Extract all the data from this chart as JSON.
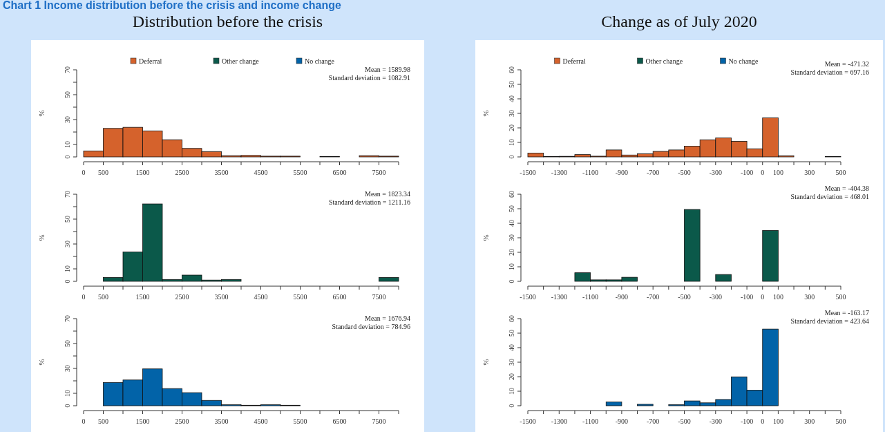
{
  "chart_data": [
    {
      "type": "histogram",
      "title": "Chart 1 Income distribution before the crisis and income change",
      "subtitle": "Distribution before the crisis",
      "ylabel": "%",
      "legend": "top",
      "bins": [
        0,
        500,
        1000,
        1500,
        2000,
        2500,
        3000,
        3500,
        4000,
        4500,
        5000,
        5500,
        6000,
        6500,
        7000,
        7500,
        8000
      ],
      "series": [
        {
          "name": "Deferral",
          "color": "#d5622c",
          "values": [
            4.8,
            22.9,
            23.8,
            20.9,
            13.8,
            6.8,
            4.3,
            1,
            1.2,
            0.6,
            0.6,
            0,
            0.4,
            0,
            1,
            0.6
          ]
        }
      ],
      "xlim": [
        0,
        8000
      ],
      "xticks": [
        0,
        500,
        {
          "value": 1000,
          "label": null
        },
        1500,
        {
          "value": 2000,
          "label": null
        },
        2500,
        {
          "value": 3000,
          "label": null
        },
        3500,
        {
          "value": 4000,
          "label": null
        },
        4500,
        {
          "value": 5000,
          "label": null
        },
        5500,
        {
          "value": 6000,
          "label": null
        },
        6500,
        {
          "value": 7000,
          "label": null
        },
        7500,
        {
          "value": 8000,
          "label": null
        }
      ],
      "ylim": [
        0,
        70
      ],
      "yticks": [
        0,
        10,
        {
          "value": 20,
          "label": null
        },
        30,
        {
          "value": 40,
          "label": null
        },
        50,
        {
          "value": 60,
          "label": null
        },
        70
      ],
      "annotations": [
        "Mean = 1589.98",
        "Standard deviation = 1082.91"
      ]
    },
    {
      "type": "histogram",
      "ylabel": "%",
      "bins": [
        0,
        500,
        1000,
        1500,
        2000,
        2500,
        3000,
        3500,
        4000,
        4500,
        5000,
        5500,
        6000,
        6500,
        7000,
        7500,
        8000
      ],
      "series": [
        {
          "name": "Other change",
          "color": "#0b594a",
          "values": [
            0,
            3.1,
            23.6,
            62.2,
            1.5,
            5,
            1,
            1.5,
            0,
            0,
            0,
            0,
            0,
            0,
            0,
            3.1
          ]
        }
      ],
      "xlim": [
        0,
        8000
      ],
      "xticks": [
        0,
        500,
        {
          "value": 1000,
          "label": null
        },
        1500,
        {
          "value": 2000,
          "label": null
        },
        2500,
        {
          "value": 3000,
          "label": null
        },
        3500,
        {
          "value": 4000,
          "label": null
        },
        4500,
        {
          "value": 5000,
          "label": null
        },
        5500,
        {
          "value": 6000,
          "label": null
        },
        6500,
        {
          "value": 7000,
          "label": null
        },
        7500,
        {
          "value": 8000,
          "label": null
        }
      ],
      "ylim": [
        0,
        70
      ],
      "yticks": [
        0,
        10,
        {
          "value": 20,
          "label": null
        },
        30,
        {
          "value": 40,
          "label": null
        },
        50,
        {
          "value": 60,
          "label": null
        },
        70
      ],
      "annotations": [
        "Mean = 1823.34",
        "Standard deviation = 1211.16"
      ]
    },
    {
      "type": "histogram",
      "ylabel": "%",
      "bins": [
        0,
        500,
        1000,
        1500,
        2000,
        2500,
        3000,
        3500,
        4000,
        4500,
        5000,
        5500,
        6000,
        6500,
        7000,
        7500,
        8000
      ],
      "series": [
        {
          "name": "No change",
          "color": "#0263a8",
          "values": [
            0,
            18.7,
            20.7,
            29.6,
            13.8,
            10.5,
            4.3,
            0.8,
            0.4,
            0.8,
            0.4,
            0,
            0,
            0,
            0,
            0
          ]
        }
      ],
      "xlim": [
        0,
        8000
      ],
      "xticks": [
        0,
        500,
        {
          "value": 1000,
          "label": null
        },
        1500,
        {
          "value": 2000,
          "label": null
        },
        2500,
        {
          "value": 3000,
          "label": null
        },
        3500,
        {
          "value": 4000,
          "label": null
        },
        4500,
        {
          "value": 5000,
          "label": null
        },
        5500,
        {
          "value": 6000,
          "label": null
        },
        6500,
        {
          "value": 7000,
          "label": null
        },
        7500,
        {
          "value": 8000,
          "label": null
        }
      ],
      "ylim": [
        0,
        70
      ],
      "yticks": [
        0,
        10,
        {
          "value": 20,
          "label": null
        },
        30,
        {
          "value": 40,
          "label": null
        },
        50,
        {
          "value": 60,
          "label": null
        },
        70
      ],
      "annotations": [
        "Mean = 1676.94",
        "Standard deviation = 784.96"
      ]
    },
    {
      "type": "histogram",
      "subtitle": "Change as of July 2020",
      "ylabel": "%",
      "legend": "top",
      "bins": [
        -1500,
        -1400,
        -1300,
        -1200,
        -1100,
        -1000,
        -900,
        -800,
        -700,
        -600,
        -500,
        -400,
        -300,
        -200,
        -100,
        0,
        100,
        200,
        300,
        400,
        500
      ],
      "series": [
        {
          "name": "Deferral",
          "color": "#d5622c",
          "values": [
            2.6,
            0.2,
            0.4,
            1.6,
            0.5,
            4.8,
            1.3,
            2.1,
            3.8,
            4.8,
            7.4,
            11.8,
            13.1,
            10.7,
            5.6,
            26.9,
            0.8,
            0,
            0,
            0.3
          ]
        }
      ],
      "xlim": [
        -1500,
        500
      ],
      "xticks": [
        -1500,
        {
          "value": -1400,
          "label": null
        },
        -1300,
        {
          "value": -1200,
          "label": null
        },
        -1100,
        {
          "value": -1000,
          "label": null
        },
        -900,
        {
          "value": -800,
          "label": null
        },
        -700,
        {
          "value": -600,
          "label": null
        },
        -500,
        {
          "value": -400,
          "label": null
        },
        -300,
        {
          "value": -200,
          "label": null
        },
        -100,
        0,
        100,
        {
          "value": 200,
          "label": null
        },
        300,
        {
          "value": 400,
          "label": null
        },
        500
      ],
      "ylim": [
        0,
        60
      ],
      "yticks": [
        0,
        10,
        20,
        30,
        40,
        50,
        60
      ],
      "annotations": [
        "Mean = -471.32",
        "Standard deviation = 697.16"
      ]
    },
    {
      "type": "histogram",
      "ylabel": "%",
      "bins": [
        -1500,
        -1400,
        -1300,
        -1200,
        -1100,
        -1000,
        -900,
        -800,
        -700,
        -600,
        -500,
        -400,
        -300,
        -200,
        -100,
        0,
        100,
        200,
        300,
        400,
        500
      ],
      "series": [
        {
          "name": "Other change",
          "color": "#0b594a",
          "values": [
            0,
            0,
            0,
            5.9,
            1,
            1,
            2.8,
            0,
            0,
            0,
            49.5,
            0,
            4.7,
            0,
            0,
            35,
            0,
            0,
            0,
            0
          ]
        }
      ],
      "xlim": [
        -1500,
        500
      ],
      "xticks": [
        -1500,
        {
          "value": -1400,
          "label": null
        },
        -1300,
        {
          "value": -1200,
          "label": null
        },
        -1100,
        {
          "value": -1000,
          "label": null
        },
        -900,
        {
          "value": -800,
          "label": null
        },
        -700,
        {
          "value": -600,
          "label": null
        },
        -500,
        {
          "value": -400,
          "label": null
        },
        -300,
        {
          "value": -200,
          "label": null
        },
        -100,
        0,
        100,
        {
          "value": 200,
          "label": null
        },
        300,
        {
          "value": 400,
          "label": null
        },
        500
      ],
      "ylim": [
        0,
        60
      ],
      "yticks": [
        0,
        10,
        20,
        30,
        40,
        50,
        60
      ],
      "annotations": [
        "Mean = -404.38",
        "Standard deviation = 468.01"
      ]
    },
    {
      "type": "histogram",
      "ylabel": "%",
      "bins": [
        -1500,
        -1400,
        -1300,
        -1200,
        -1100,
        -1000,
        -900,
        -800,
        -700,
        -600,
        -500,
        -400,
        -300,
        -200,
        -100,
        0,
        100,
        200,
        300,
        400,
        500
      ],
      "series": [
        {
          "name": "No change",
          "color": "#0263a8",
          "values": [
            0,
            0,
            0,
            0,
            0,
            2.6,
            0,
            1,
            0,
            0.8,
            3.3,
            2,
            4.3,
            19.9,
            10.7,
            52.8,
            0,
            0,
            0,
            0
          ]
        }
      ],
      "xlim": [
        -1500,
        500
      ],
      "xticks": [
        -1500,
        {
          "value": -1400,
          "label": null
        },
        -1300,
        {
          "value": -1200,
          "label": null
        },
        -1100,
        {
          "value": -1000,
          "label": null
        },
        -900,
        {
          "value": -800,
          "label": null
        },
        -700,
        {
          "value": -600,
          "label": null
        },
        -500,
        {
          "value": -400,
          "label": null
        },
        -300,
        {
          "value": -200,
          "label": null
        },
        -100,
        0,
        100,
        {
          "value": 200,
          "label": null
        },
        300,
        {
          "value": 400,
          "label": null
        },
        500
      ],
      "ylim": [
        0,
        60
      ],
      "yticks": [
        0,
        10,
        20,
        30,
        40,
        50,
        60
      ],
      "annotations": [
        "Mean = -163.17",
        "Standard deviation = 423.64"
      ]
    }
  ]
}
